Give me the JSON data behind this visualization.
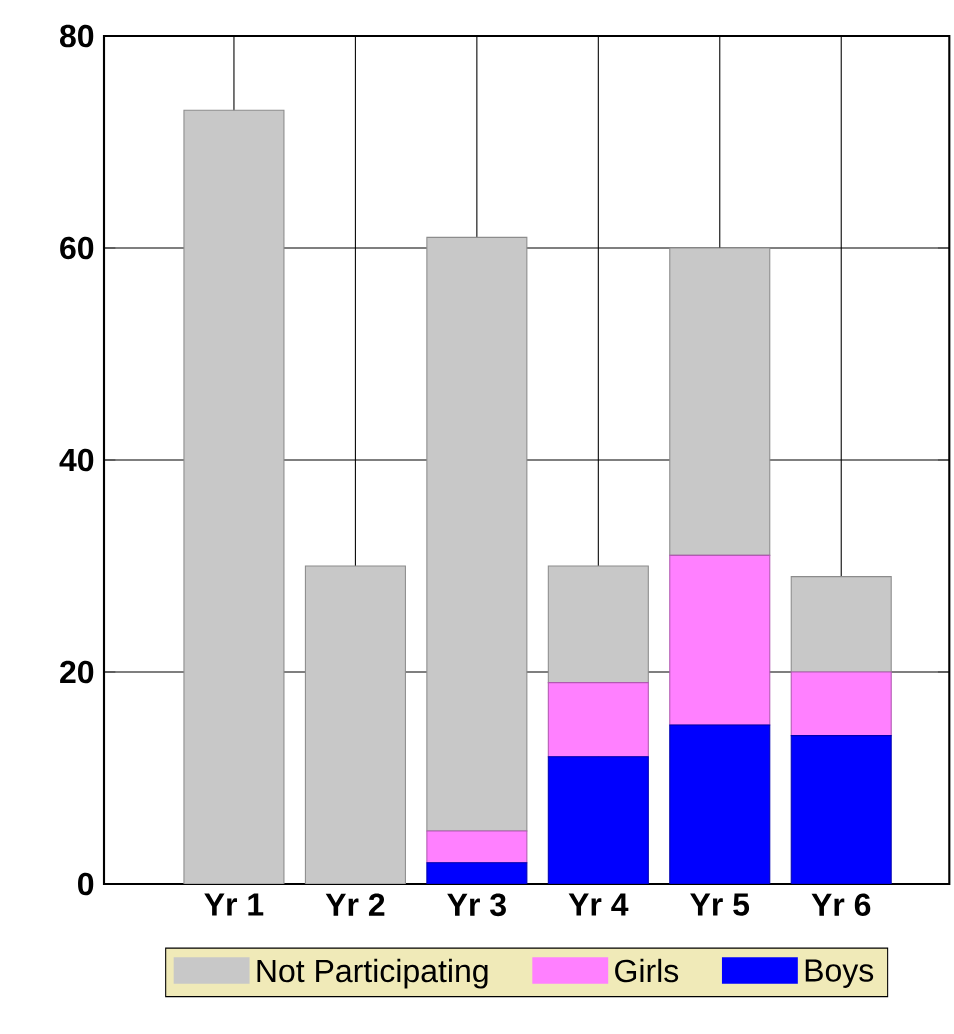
{
  "chart_data": {
    "type": "bar",
    "stacked": true,
    "categories": [
      "Yr 1",
      "Yr 2",
      "Yr 3",
      "Yr 4",
      "Yr 5",
      "Yr 6"
    ],
    "series": [
      {
        "name": "Boys",
        "color": "#0000ff",
        "values": [
          0,
          0,
          2,
          12,
          15,
          14
        ]
      },
      {
        "name": "Girls",
        "color": "#ff80ff",
        "values": [
          0,
          0,
          3,
          7,
          16,
          6
        ]
      },
      {
        "name": "Not Participating",
        "color": "#c8c8c8",
        "values": [
          73,
          30,
          56,
          11,
          29,
          9
        ]
      }
    ],
    "ylim": [
      0,
      80
    ],
    "yticks": [
      0,
      20,
      40,
      60,
      80
    ],
    "grid": true,
    "legend": "bottom"
  }
}
